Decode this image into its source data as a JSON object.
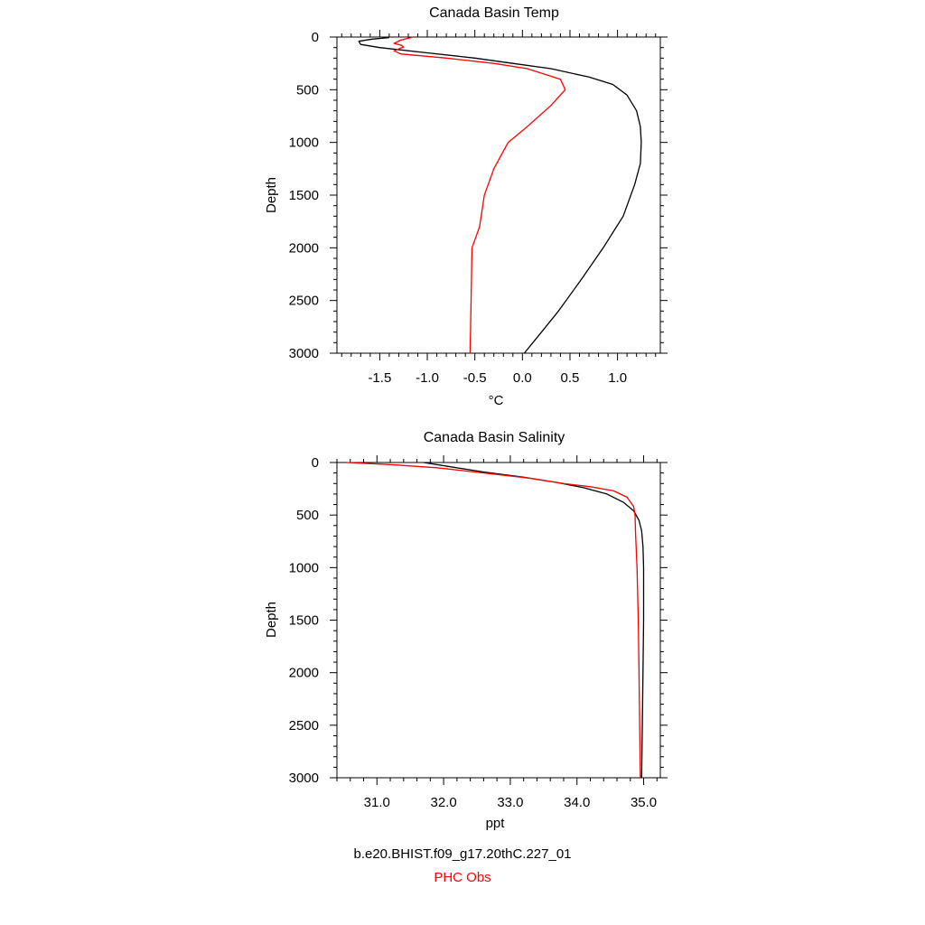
{
  "chart_data": [
    {
      "type": "line",
      "title": "Canada Basin Temp",
      "xlabel": "°C",
      "ylabel": "Depth",
      "xlim": [
        -1.95,
        1.45
      ],
      "ylim": [
        3000,
        0
      ],
      "xticks": [
        -1.5,
        -1.0,
        -0.5,
        0.0,
        0.5,
        1.0
      ],
      "xtick_labels": [
        "-1.5",
        "-1.0",
        "-0.5",
        "0.0",
        "0.5",
        "1.0"
      ],
      "yticks": [
        0,
        500,
        1000,
        1500,
        2000,
        2500,
        3000
      ],
      "ytick_labels": [
        "0",
        "500",
        "1000",
        "1500",
        "2000",
        "2500",
        "3000"
      ],
      "grid": false,
      "series": [
        {
          "name": "b.e20.BHIST.f09_g17.20thC.227_01",
          "color": "#000000",
          "points": [
            [
              -1.4,
              5
            ],
            [
              -1.58,
              20
            ],
            [
              -1.72,
              40
            ],
            [
              -1.7,
              70
            ],
            [
              -1.5,
              100
            ],
            [
              -1.0,
              150
            ],
            [
              -0.5,
              200
            ],
            [
              -0.1,
              250
            ],
            [
              0.3,
              300
            ],
            [
              0.7,
              380
            ],
            [
              0.95,
              450
            ],
            [
              1.1,
              550
            ],
            [
              1.2,
              700
            ],
            [
              1.24,
              850
            ],
            [
              1.25,
              1000
            ],
            [
              1.24,
              1200
            ],
            [
              1.18,
              1400
            ],
            [
              1.06,
              1700
            ],
            [
              0.85,
              2000
            ],
            [
              0.62,
              2300
            ],
            [
              0.38,
              2600
            ],
            [
              0.2,
              2800
            ],
            [
              0.02,
              3000
            ]
          ]
        },
        {
          "name": "PHC Obs",
          "color": "#ff0000",
          "points": [
            [
              -1.15,
              0
            ],
            [
              -1.28,
              30
            ],
            [
              -1.35,
              60
            ],
            [
              -1.27,
              80
            ],
            [
              -1.25,
              95
            ],
            [
              -1.35,
              130
            ],
            [
              -1.28,
              160
            ],
            [
              -0.8,
              200
            ],
            [
              -0.3,
              250
            ],
            [
              0.05,
              300
            ],
            [
              0.4,
              400
            ],
            [
              0.45,
              500
            ],
            [
              0.3,
              650
            ],
            [
              0.05,
              850
            ],
            [
              -0.15,
              1000
            ],
            [
              -0.3,
              1250
            ],
            [
              -0.4,
              1500
            ],
            [
              -0.45,
              1800
            ],
            [
              -0.53,
              2000
            ],
            [
              -0.54,
              2500
            ],
            [
              -0.55,
              3000
            ]
          ]
        }
      ]
    },
    {
      "type": "line",
      "title": "Canada Basin Salinity",
      "xlabel": "ppt",
      "ylabel": "Depth",
      "xlim": [
        30.4,
        35.25
      ],
      "ylim": [
        3000,
        0
      ],
      "xticks": [
        31.0,
        32.0,
        33.0,
        34.0,
        35.0
      ],
      "xtick_labels": [
        "31.0",
        "32.0",
        "33.0",
        "34.0",
        "35.0"
      ],
      "yticks": [
        0,
        500,
        1000,
        1500,
        2000,
        2500,
        3000
      ],
      "ytick_labels": [
        "0",
        "500",
        "1000",
        "1500",
        "2000",
        "2500",
        "3000"
      ],
      "grid": false,
      "series": [
        {
          "name": "b.e20.BHIST.f09_g17.20thC.227_01",
          "color": "#000000",
          "points": [
            [
              31.7,
              0
            ],
            [
              32.1,
              40
            ],
            [
              32.6,
              90
            ],
            [
              33.2,
              140
            ],
            [
              33.7,
              190
            ],
            [
              34.1,
              240
            ],
            [
              34.45,
              300
            ],
            [
              34.7,
              380
            ],
            [
              34.85,
              460
            ],
            [
              34.93,
              550
            ],
            [
              34.97,
              650
            ],
            [
              34.99,
              800
            ],
            [
              35.0,
              1000
            ],
            [
              35.0,
              1500
            ],
            [
              34.99,
              2000
            ],
            [
              34.98,
              2500
            ],
            [
              34.97,
              3000
            ]
          ]
        },
        {
          "name": "PHC Obs",
          "color": "#ff0000",
          "points": [
            [
              30.55,
              0
            ],
            [
              31.2,
              20
            ],
            [
              31.9,
              50
            ],
            [
              32.6,
              100
            ],
            [
              33.3,
              150
            ],
            [
              33.8,
              200
            ],
            [
              34.2,
              230
            ],
            [
              34.55,
              270
            ],
            [
              34.75,
              330
            ],
            [
              34.85,
              420
            ],
            [
              34.87,
              500
            ],
            [
              34.88,
              700
            ],
            [
              34.9,
              1000
            ],
            [
              34.92,
              1500
            ],
            [
              34.93,
              2000
            ],
            [
              34.94,
              2500
            ],
            [
              34.95,
              3000
            ]
          ]
        }
      ]
    }
  ],
  "legend": {
    "model_label": "b.e20.BHIST.f09_g17.20thC.227_01",
    "model_color": "#000000",
    "obs_label": "PHC Obs",
    "obs_color": "#ff0000"
  }
}
